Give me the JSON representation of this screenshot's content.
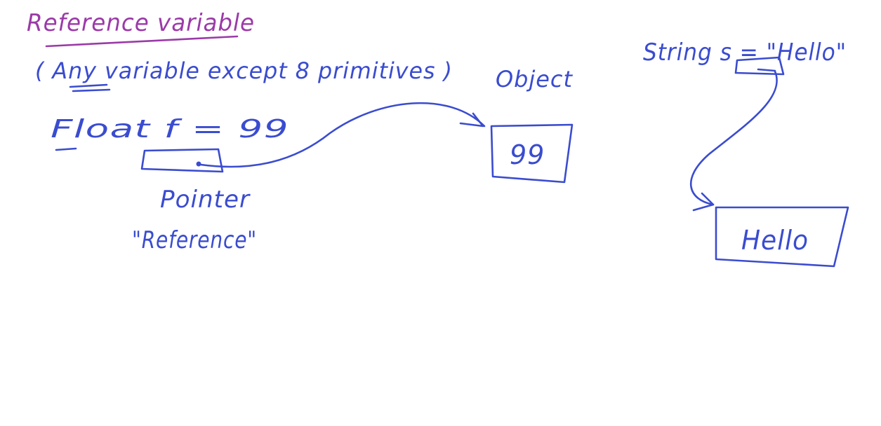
{
  "canvas": {
    "background": "#ffffff",
    "blue_ink": "#3a4ccf",
    "purple_ink": "#9b3aa8"
  },
  "title": {
    "text": "Reference variable"
  },
  "subtitle": {
    "text": "( Any variable except 8 primitives )"
  },
  "float_example": {
    "declaration": "Float f = 99",
    "pointer_label": "Pointer",
    "reference_label": "\"Reference\"",
    "object_label": "Object",
    "object_value": "99"
  },
  "string_example": {
    "declaration": "String s = \"Hello\"",
    "object_value": "Hello"
  }
}
